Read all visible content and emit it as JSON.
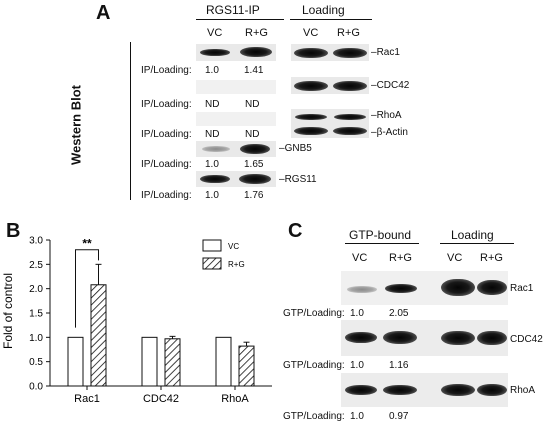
{
  "panel_a": {
    "letter": "A",
    "side_label": "Western Blot",
    "ip_header": "RGS11-IP",
    "loading_header": "Loading",
    "col_vc": "VC",
    "col_rg": "R+G",
    "ratio_label": "IP/Loading:",
    "ip_rows": [
      {
        "vc": "1.0",
        "rg": "1.41"
      },
      {
        "vc": "ND",
        "rg": "ND"
      },
      {
        "vc": "ND",
        "rg": "ND"
      },
      {
        "vc": "1.0",
        "rg": "1.65"
      },
      {
        "vc": "1.0",
        "rg": "1.76"
      }
    ],
    "ip_tags": {
      "gnb5": "GNB5",
      "rgs11": "RGS11"
    },
    "loading_labels": {
      "rac1": "Rac1",
      "cdc42": "CDC42",
      "rhoa": "RhoA",
      "actin": "β-Actin"
    }
  },
  "panel_b": {
    "letter": "B",
    "significance": "**",
    "legend": [
      "VC",
      "R+G"
    ]
  },
  "panel_c": {
    "letter": "C",
    "gtp_header": "GTP-bound",
    "loading_header": "Loading",
    "col_vc": "VC",
    "col_rg": "R+G",
    "ratio_label": "GTP/Loading:",
    "rows": [
      {
        "label": "Rac1",
        "vc": "1.0",
        "rg": "2.05"
      },
      {
        "label": "CDC42",
        "vc": "1.0",
        "rg": "1.16"
      },
      {
        "label": "RhoA",
        "vc": "1.0",
        "rg": "0.97"
      }
    ]
  },
  "chart_data": {
    "type": "bar",
    "title": "",
    "xlabel": "",
    "ylabel": "Fold of control",
    "categories": [
      "Rac1",
      "CDC42",
      "RhoA"
    ],
    "ylim": [
      0.0,
      3.0
    ],
    "yticks": [
      "0.0",
      "0.5",
      "1.0",
      "1.5",
      "2.0",
      "2.5",
      "3.0"
    ],
    "series": [
      {
        "name": "VC",
        "values": [
          1.0,
          1.0,
          1.0
        ],
        "error": [
          0,
          0,
          0
        ],
        "fill": "#ffffff"
      },
      {
        "name": "R+G",
        "values": [
          2.08,
          0.97,
          0.82
        ],
        "error": [
          0.42,
          0.05,
          0.08
        ],
        "fill": "hatched"
      }
    ],
    "legend_position": "top-right",
    "grid": false,
    "annotations": [
      {
        "text": "**",
        "between": [
          "VC",
          "R+G"
        ],
        "category": "Rac1"
      }
    ]
  }
}
